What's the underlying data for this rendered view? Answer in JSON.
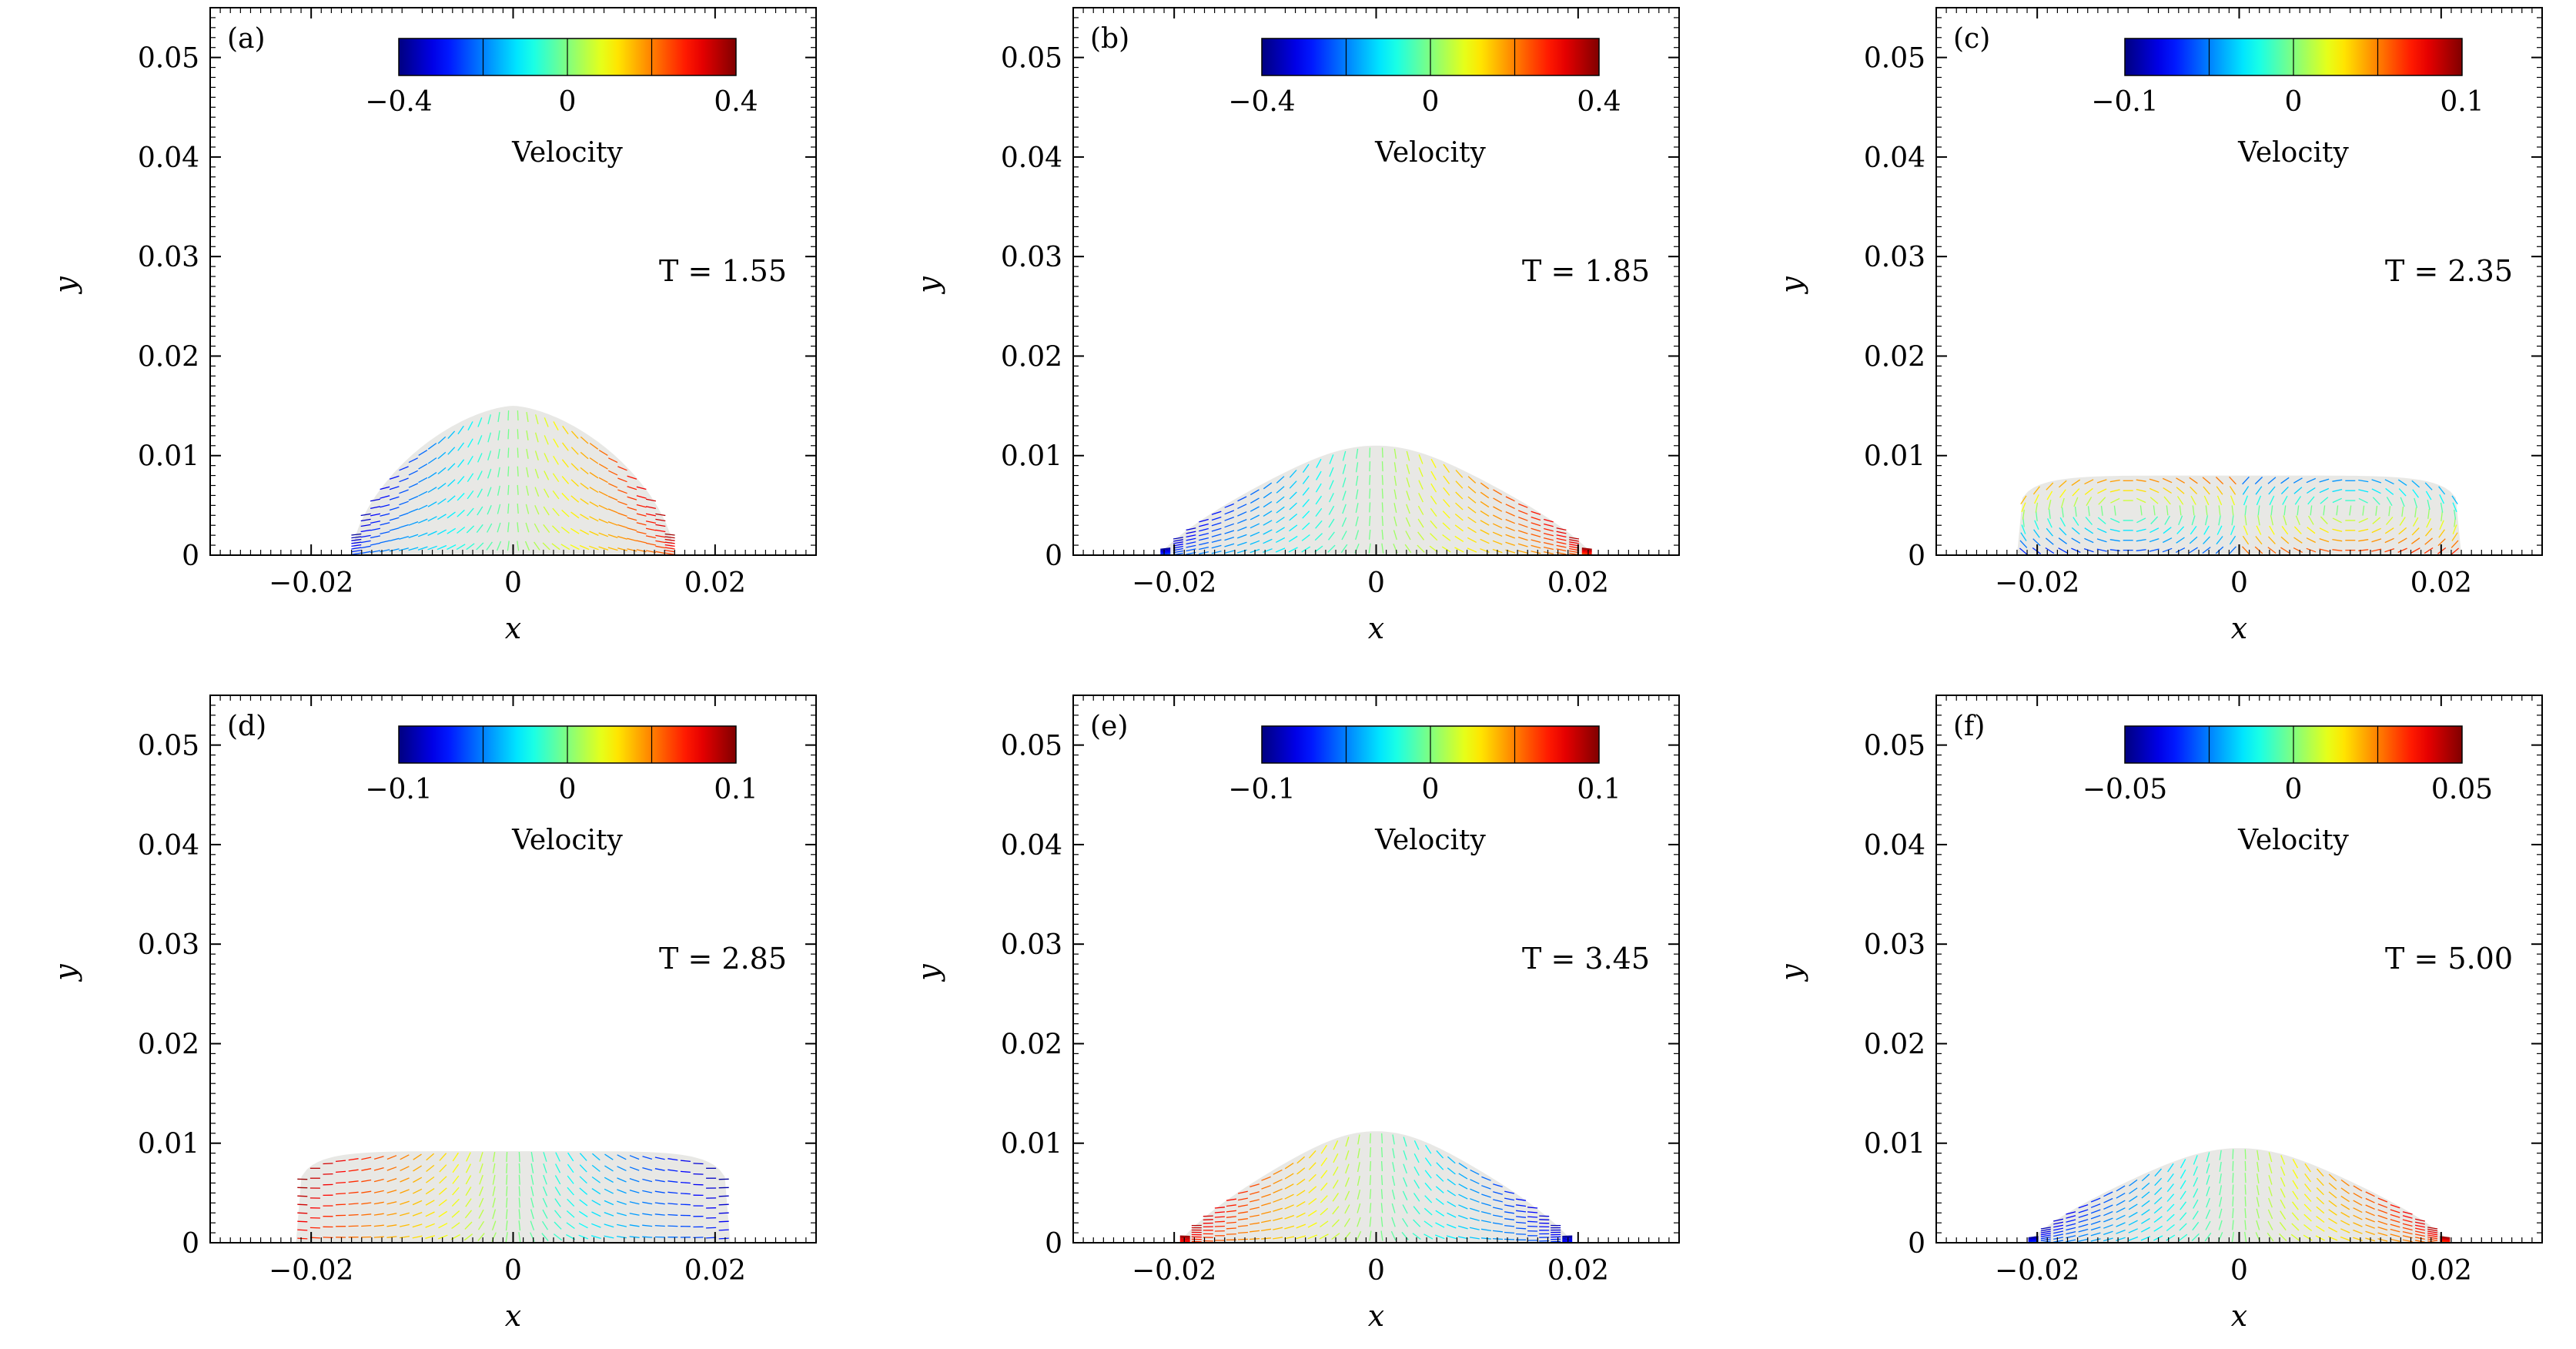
{
  "figure": {
    "background": "#ffffff"
  },
  "chart_data": [
    {
      "type": "quiver",
      "panel_label": "(a)",
      "time_label": "T = 1.55",
      "xlabel": "x",
      "ylabel": "y",
      "xlim": [
        -0.03,
        0.03
      ],
      "ylim": [
        0,
        0.055
      ],
      "xticks": [
        -0.02,
        0,
        0.02
      ],
      "xtick_labels": [
        "−0.02",
        "0",
        "0.02"
      ],
      "yticks": [
        0,
        0.01,
        0.02,
        0.03,
        0.04,
        0.05
      ],
      "ytick_labels": [
        "0",
        "0.01",
        "0.02",
        "0.03",
        "0.04",
        "0.05"
      ],
      "colorbar": {
        "title": "Velocity",
        "min": -0.4,
        "max": 0.4,
        "ticks": [
          -0.4,
          0,
          0.4
        ],
        "tick_labels": [
          "−0.4",
          "0",
          "0.4"
        ]
      },
      "droplet": {
        "half_width": 0.016,
        "height": 0.015,
        "shape": "cap"
      },
      "flow_pattern": "spreading",
      "grid": false
    },
    {
      "type": "quiver",
      "panel_label": "(b)",
      "time_label": "T = 1.85",
      "xlabel": "x",
      "ylabel": "y",
      "xlim": [
        -0.03,
        0.03
      ],
      "ylim": [
        0,
        0.055
      ],
      "xticks": [
        -0.02,
        0,
        0.02
      ],
      "xtick_labels": [
        "−0.02",
        "0",
        "0.02"
      ],
      "yticks": [
        0,
        0.01,
        0.02,
        0.03,
        0.04,
        0.05
      ],
      "ytick_labels": [
        "0",
        "0.01",
        "0.02",
        "0.03",
        "0.04",
        "0.05"
      ],
      "colorbar": {
        "title": "Velocity",
        "min": -0.4,
        "max": 0.4,
        "ticks": [
          -0.4,
          0,
          0.4
        ],
        "tick_labels": [
          "−0.4",
          "0",
          "0.4"
        ]
      },
      "droplet": {
        "half_width": 0.0215,
        "height": 0.011,
        "shape": "bell"
      },
      "flow_pattern": "spreading",
      "grid": false
    },
    {
      "type": "quiver",
      "panel_label": "(c)",
      "time_label": "T = 2.35",
      "xlabel": "x",
      "ylabel": "y",
      "xlim": [
        -0.03,
        0.03
      ],
      "ylim": [
        0,
        0.055
      ],
      "xticks": [
        -0.02,
        0,
        0.02
      ],
      "xtick_labels": [
        "−0.02",
        "0",
        "0.02"
      ],
      "yticks": [
        0,
        0.01,
        0.02,
        0.03,
        0.04,
        0.05
      ],
      "ytick_labels": [
        "0",
        "0.01",
        "0.02",
        "0.03",
        "0.04",
        "0.05"
      ],
      "colorbar": {
        "title": "Velocity",
        "min": -0.1,
        "max": 0.1,
        "ticks": [
          -0.1,
          0,
          0.1
        ],
        "tick_labels": [
          "−0.1",
          "0",
          "0.1"
        ]
      },
      "droplet": {
        "half_width": 0.022,
        "height": 0.008,
        "shape": "flat"
      },
      "flow_pattern": "vortex",
      "grid": false
    },
    {
      "type": "quiver",
      "panel_label": "(d)",
      "time_label": "T = 2.85",
      "xlabel": "x",
      "ylabel": "y",
      "xlim": [
        -0.03,
        0.03
      ],
      "ylim": [
        0,
        0.055
      ],
      "xticks": [
        -0.02,
        0,
        0.02
      ],
      "xtick_labels": [
        "−0.02",
        "0",
        "0.02"
      ],
      "yticks": [
        0,
        0.01,
        0.02,
        0.03,
        0.04,
        0.05
      ],
      "ytick_labels": [
        "0",
        "0.01",
        "0.02",
        "0.03",
        "0.04",
        "0.05"
      ],
      "colorbar": {
        "title": "Velocity",
        "min": -0.1,
        "max": 0.1,
        "ticks": [
          -0.1,
          0,
          0.1
        ],
        "tick_labels": [
          "−0.1",
          "0",
          "0.1"
        ]
      },
      "droplet": {
        "half_width": 0.0215,
        "height": 0.0092,
        "shape": "flat"
      },
      "flow_pattern": "retracting",
      "grid": false
    },
    {
      "type": "quiver",
      "panel_label": "(e)",
      "time_label": "T = 3.45",
      "xlabel": "x",
      "ylabel": "y",
      "xlim": [
        -0.03,
        0.03
      ],
      "ylim": [
        0,
        0.055
      ],
      "xticks": [
        -0.02,
        0,
        0.02
      ],
      "xtick_labels": [
        "−0.02",
        "0",
        "0.02"
      ],
      "yticks": [
        0,
        0.01,
        0.02,
        0.03,
        0.04,
        0.05
      ],
      "ytick_labels": [
        "0",
        "0.01",
        "0.02",
        "0.03",
        "0.04",
        "0.05"
      ],
      "colorbar": {
        "title": "Velocity",
        "min": -0.1,
        "max": 0.1,
        "ticks": [
          -0.1,
          0,
          0.1
        ],
        "tick_labels": [
          "−0.1",
          "0",
          "0.1"
        ]
      },
      "droplet": {
        "half_width": 0.0195,
        "height": 0.0112,
        "shape": "bell"
      },
      "flow_pattern": "retracting",
      "grid": false
    },
    {
      "type": "quiver",
      "panel_label": "(f)",
      "time_label": "T = 5.00",
      "xlabel": "x",
      "ylabel": "y",
      "xlim": [
        -0.03,
        0.03
      ],
      "ylim": [
        0,
        0.055
      ],
      "xticks": [
        -0.02,
        0,
        0.02
      ],
      "xtick_labels": [
        "−0.02",
        "0",
        "0.02"
      ],
      "yticks": [
        0,
        0.01,
        0.02,
        0.03,
        0.04,
        0.05
      ],
      "ytick_labels": [
        "0",
        "0.01",
        "0.02",
        "0.03",
        "0.04",
        "0.05"
      ],
      "colorbar": {
        "title": "Velocity",
        "min": -0.05,
        "max": 0.05,
        "ticks": [
          -0.05,
          0,
          0.05
        ],
        "tick_labels": [
          "−0.05",
          "0",
          "0.05"
        ]
      },
      "droplet": {
        "half_width": 0.021,
        "height": 0.0095,
        "shape": "bell"
      },
      "flow_pattern": "spreading",
      "grid": false
    }
  ]
}
